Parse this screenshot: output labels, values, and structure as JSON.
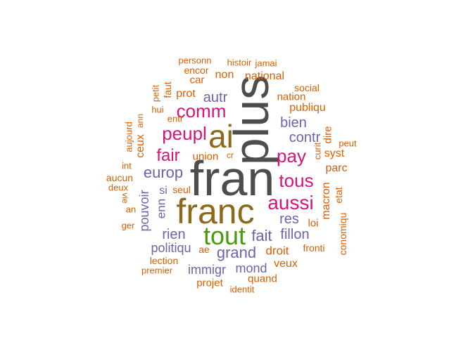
{
  "colors": {
    "gray": "#4d4d4d",
    "brown": "#8c6a1c",
    "green": "#4a9a0e",
    "pink": "#d6137a",
    "purple": "#6b64aa",
    "orange": "#d95f02"
  },
  "words": [
    "plus",
    "fran",
    "franc",
    "ai",
    "tout",
    "aussi",
    "tous",
    "pay",
    "comm",
    "peupl",
    "fair",
    "europ",
    "fait",
    "grand",
    "contr",
    "bien",
    "res",
    "fillon",
    "autr",
    "rien",
    "politiqu",
    "immigr",
    "mond",
    "droit",
    "veux",
    "non",
    "national",
    "publiqu",
    "pouvoir",
    "macron",
    "parc",
    "nation",
    "social",
    "syst",
    "dire",
    "etat",
    "conomiqu",
    "loi",
    "fronti",
    "quand",
    "projet",
    "identit",
    "lection",
    "premier",
    "ae",
    "si",
    "enn",
    "seul",
    "union",
    "cr",
    "prot",
    "car",
    "encor",
    "personn",
    "histoir",
    "jamai",
    "petit",
    "faut",
    "hui",
    "entr",
    "ann",
    "aujourd",
    "ceux",
    "int",
    "aucun",
    "deux",
    "vie",
    "an",
    "ger",
    "peut",
    "curit"
  ]
}
